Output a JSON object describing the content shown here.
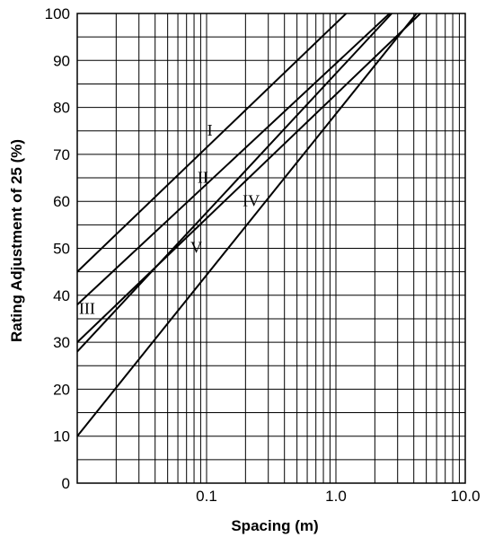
{
  "chart_data": {
    "type": "line",
    "xlabel": "Spacing (m)",
    "ylabel": "Rating Adjustment of 25 (%)",
    "xscale": "log",
    "xlim": [
      0.01,
      10
    ],
    "ylim": [
      0,
      100
    ],
    "grid": true,
    "xticks": [
      {
        "value": 0.1,
        "label": "0.1"
      },
      {
        "value": 1,
        "label": "1.0"
      },
      {
        "value": 10,
        "label": "10.0"
      }
    ],
    "yticks": [
      {
        "value": 0,
        "label": "0"
      },
      {
        "value": 10,
        "label": "10"
      },
      {
        "value": 20,
        "label": "20"
      },
      {
        "value": 30,
        "label": "30"
      },
      {
        "value": 40,
        "label": "40"
      },
      {
        "value": 50,
        "label": "50"
      },
      {
        "value": 60,
        "label": "60"
      },
      {
        "value": 70,
        "label": "70"
      },
      {
        "value": 80,
        "label": "80"
      },
      {
        "value": 90,
        "label": "90"
      },
      {
        "value": 100,
        "label": "100"
      }
    ],
    "series": [
      {
        "name": "I",
        "x": [
          0.01,
          1.2
        ],
        "y": [
          45,
          100
        ]
      },
      {
        "name": "II",
        "x": [
          0.01,
          2.6
        ],
        "y": [
          38,
          100
        ]
      },
      {
        "name": "III",
        "x": [
          0.01,
          2.7
        ],
        "y": [
          28,
          100
        ]
      },
      {
        "name": "IV",
        "x": [
          0.01,
          4.5
        ],
        "y": [
          30,
          100
        ]
      },
      {
        "name": "V",
        "x": [
          0.01,
          4.2
        ],
        "y": [
          10,
          100
        ]
      }
    ],
    "series_label_anchor": [
      {
        "x": 0.101,
        "y": 74
      },
      {
        "x": 0.085,
        "y": 64
      },
      {
        "x": 0.0103,
        "y": 36
      },
      {
        "x": 0.19,
        "y": 59
      },
      {
        "x": 0.075,
        "y": 49
      }
    ]
  }
}
